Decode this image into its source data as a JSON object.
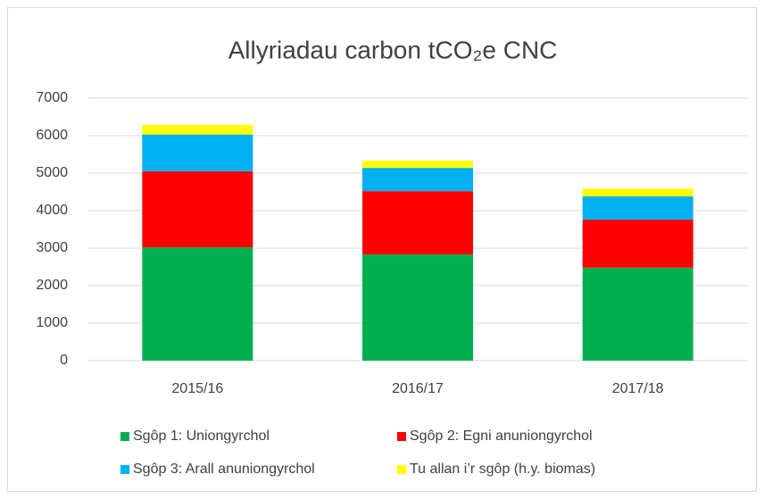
{
  "chart_data": {
    "type": "stacked_bar",
    "title": "Allyriadau carbon tCO₂e CNC",
    "categories": [
      "2015/16",
      "2016/17",
      "2017/18"
    ],
    "series": [
      {
        "name": "Sgôp 1: Uniongyrchol",
        "color": "#00b050",
        "values": [
          3020,
          2830,
          2480
        ]
      },
      {
        "name": "Sgôp 2: Egni anuniongyrchol",
        "color": "#ff0000",
        "values": [
          2030,
          1690,
          1280
        ]
      },
      {
        "name": "Sgôp 3: Arall anuniongyrchol",
        "color": "#00b0f0",
        "values": [
          980,
          620,
          620
        ]
      },
      {
        "name": "Tu allan i’r sgôp (h.y. biomas)",
        "color": "#ffff00",
        "values": [
          260,
          190,
          210
        ]
      }
    ],
    "ylim": [
      0,
      7000
    ],
    "yticks": [
      0,
      1000,
      2000,
      3000,
      4000,
      5000,
      6000,
      7000
    ],
    "grid": true
  }
}
